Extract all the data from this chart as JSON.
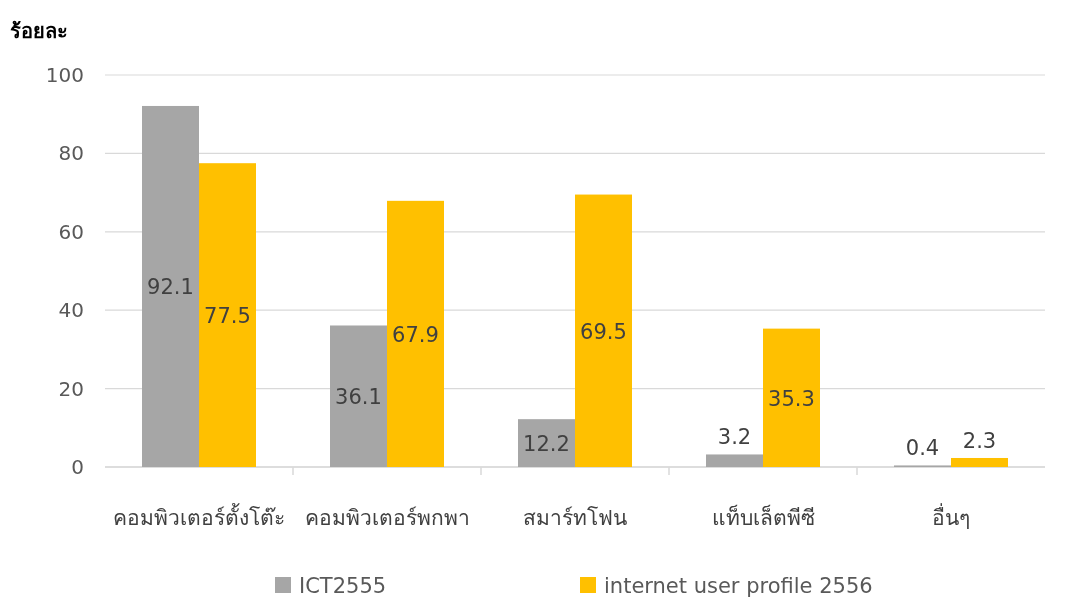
{
  "chart_data": {
    "type": "bar",
    "ylabel": "ร้อยละ",
    "categories": [
      "คอมพิวเตอร์ตั้งโต๊ะ",
      "คอมพิวเตอร์พกพา",
      "สมาร์ทโฟน",
      "แท็บเล็ตพีซี",
      "อื่นๆ"
    ],
    "series": [
      {
        "name": "ICT2555",
        "color": "#a6a6a6",
        "values": [
          92.1,
          36.1,
          12.2,
          3.2,
          0.4
        ]
      },
      {
        "name": "internet user profile 2556",
        "color": "#ffc000",
        "values": [
          77.5,
          67.9,
          69.5,
          35.3,
          2.3
        ]
      }
    ],
    "ylim": [
      0,
      100
    ],
    "yticks": [
      0,
      20,
      40,
      60,
      80,
      100
    ],
    "grid": "y",
    "legend": "bottom",
    "data_labels": true
  }
}
